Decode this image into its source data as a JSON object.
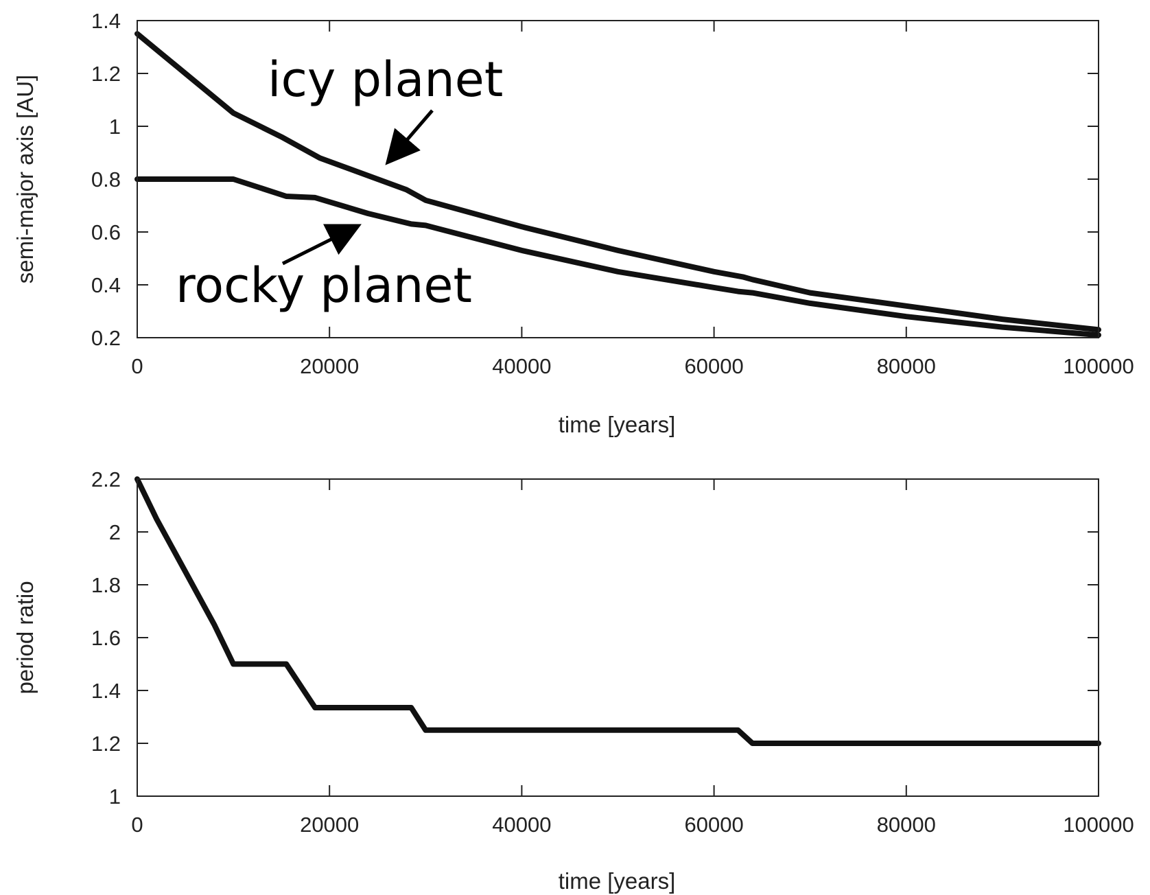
{
  "chart_data": [
    {
      "type": "line",
      "xlabel": "time [years]",
      "ylabel": "semi-major axis [AU]",
      "xlim": [
        0,
        100000
      ],
      "ylim": [
        0.2,
        1.4
      ],
      "xticks": [
        0,
        20000,
        40000,
        60000,
        80000,
        100000
      ],
      "yticks": [
        0.2,
        0.4,
        0.6,
        0.8,
        1,
        1.2,
        1.4
      ],
      "xtick_labels": [
        "0",
        "20000",
        "40000",
        "60000",
        "80000",
        "100000"
      ],
      "ytick_labels": [
        "0.2",
        "0.4",
        "0.6",
        "0.8",
        "1",
        "1.2",
        "1.4"
      ],
      "grid": false,
      "series": [
        {
          "name": "icy planet",
          "color": "#111111",
          "x": [
            0,
            2000,
            5000,
            10000,
            15000,
            19000,
            25000,
            28000,
            30000,
            40000,
            50000,
            60000,
            63000,
            64000,
            70000,
            80000,
            90000,
            100000
          ],
          "y": [
            1.35,
            1.29,
            1.2,
            1.05,
            0.96,
            0.88,
            0.8,
            0.76,
            0.72,
            0.62,
            0.53,
            0.45,
            0.43,
            0.42,
            0.37,
            0.32,
            0.27,
            0.23
          ]
        },
        {
          "name": "rocky planet",
          "color": "#111111",
          "x": [
            0,
            5000,
            10000,
            15500,
            18500,
            24000,
            28500,
            30000,
            40000,
            50000,
            60000,
            62500,
            64000,
            70000,
            80000,
            90000,
            100000
          ],
          "y": [
            0.8,
            0.8,
            0.8,
            0.735,
            0.73,
            0.67,
            0.63,
            0.625,
            0.53,
            0.45,
            0.39,
            0.375,
            0.37,
            0.33,
            0.28,
            0.24,
            0.21
          ]
        }
      ],
      "annotations": [
        {
          "text": "icy planet",
          "target": [
            25500,
            0.82
          ]
        },
        {
          "text": "rocky planet",
          "target": [
            23500,
            0.65
          ]
        }
      ]
    },
    {
      "type": "line",
      "xlabel": "time [years]",
      "ylabel": "period ratio",
      "xlim": [
        0,
        100000
      ],
      "ylim": [
        1,
        2.2
      ],
      "xticks": [
        0,
        20000,
        40000,
        60000,
        80000,
        100000
      ],
      "yticks": [
        1,
        1.2,
        1.4,
        1.6,
        1.8,
        2,
        2.2
      ],
      "xtick_labels": [
        "0",
        "20000",
        "40000",
        "60000",
        "80000",
        "100000"
      ],
      "ytick_labels": [
        "1",
        "1.2",
        "1.4",
        "1.6",
        "1.8",
        "2",
        "2.2"
      ],
      "grid": false,
      "series": [
        {
          "name": "",
          "color": "#111111",
          "x": [
            0,
            2000,
            5000,
            8000,
            10000,
            15500,
            18500,
            26000,
            28500,
            30000,
            62500,
            64000,
            100000
          ],
          "y": [
            2.2,
            2.05,
            1.85,
            1.65,
            1.5,
            1.5,
            1.335,
            1.335,
            1.335,
            1.25,
            1.25,
            1.2,
            1.2
          ]
        }
      ]
    }
  ]
}
